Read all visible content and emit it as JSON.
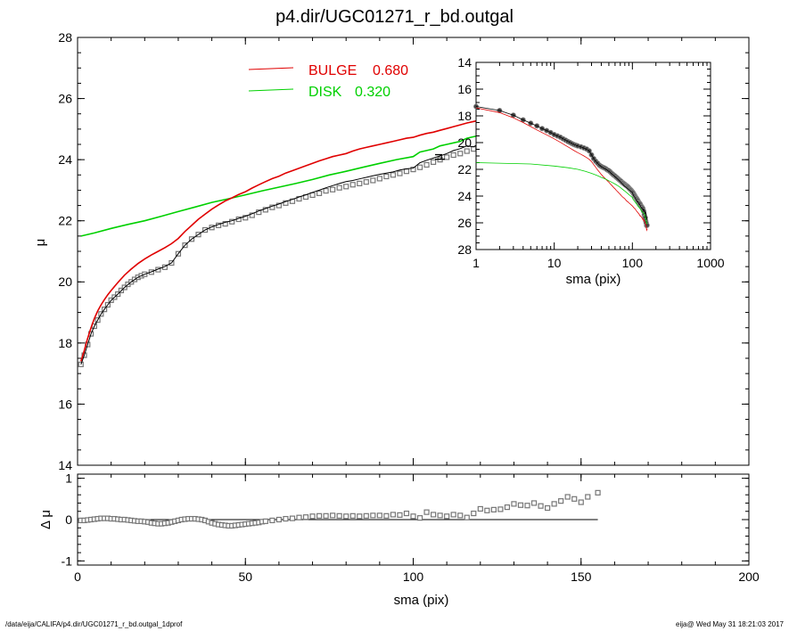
{
  "title": "p4.dir/UGC01271_r_bd.outgal",
  "footer": {
    "left": "/data/eija/CALIFA/p4.dir/UGC01271_r_bd.outgal_1dprof",
    "right": "eija@  Wed May 31 18:21:03 2017"
  },
  "colors": {
    "bulge": "#e00000",
    "disk": "#00d000",
    "total": "#000000",
    "points": "#777777"
  },
  "chart_data": [
    {
      "id": "main",
      "type": "line",
      "xlabel": "sma (pix)",
      "ylabel": "μ",
      "xlim": [
        0,
        200
      ],
      "ylim": [
        28,
        14
      ],
      "xticks": [
        0,
        50,
        100,
        150,
        200
      ],
      "yticks": [
        14,
        16,
        18,
        20,
        22,
        24,
        26,
        28
      ],
      "legend": [
        {
          "label": "BULGE",
          "value": "0.680",
          "color": "#e00000"
        },
        {
          "label": "DISK",
          "value": "0.320",
          "color": "#00d000"
        }
      ],
      "observed": {
        "x": [
          1,
          2,
          3,
          4,
          5,
          6,
          7,
          8,
          9,
          10,
          11,
          12,
          13,
          14,
          15,
          16,
          17,
          18,
          19,
          20,
          22,
          24,
          26,
          28,
          30,
          32,
          34,
          36,
          38,
          40,
          42,
          44,
          46,
          48,
          50,
          52,
          54,
          56,
          58,
          60,
          62,
          64,
          66,
          68,
          70,
          72,
          74,
          76,
          78,
          80,
          82,
          84,
          86,
          88,
          90,
          92,
          94,
          96,
          98,
          100,
          102,
          104,
          106,
          108,
          110,
          112,
          114,
          116,
          118,
          120,
          122,
          124,
          126,
          128,
          130,
          132,
          134,
          136,
          138,
          140,
          142,
          144,
          146,
          148,
          150,
          152,
          154
        ],
        "y": [
          17.3,
          17.6,
          17.95,
          18.3,
          18.55,
          18.75,
          18.95,
          19.1,
          19.25,
          19.4,
          19.5,
          19.6,
          19.72,
          19.82,
          19.92,
          20.0,
          20.08,
          20.15,
          20.2,
          20.25,
          20.32,
          20.4,
          20.48,
          20.62,
          20.92,
          21.2,
          21.4,
          21.55,
          21.7,
          21.78,
          21.85,
          21.9,
          21.97,
          22.05,
          22.1,
          22.18,
          22.28,
          22.36,
          22.44,
          22.5,
          22.58,
          22.64,
          22.72,
          22.78,
          22.84,
          22.9,
          22.98,
          23.02,
          23.08,
          23.12,
          23.18,
          23.22,
          23.27,
          23.32,
          23.38,
          23.45,
          23.5,
          23.55,
          23.62,
          23.68,
          23.75,
          23.83,
          23.92,
          24.0,
          24.08,
          24.15,
          24.2,
          24.28,
          24.35,
          24.45,
          24.5,
          24.55,
          24.6,
          24.7,
          24.78,
          24.8,
          24.9,
          24.92,
          25.05,
          25.15,
          25.4,
          25.55,
          25.6,
          25.85,
          26.0,
          26.2,
          26.18
        ]
      },
      "total_model": {
        "x": [
          1,
          2,
          3,
          4,
          5,
          6,
          7,
          8,
          9,
          10,
          12,
          14,
          16,
          18,
          20,
          22,
          24,
          26,
          28,
          30,
          32,
          34,
          36,
          38,
          40,
          42,
          44,
          46,
          48,
          50,
          52,
          54,
          56,
          58,
          60,
          62,
          64,
          66,
          68,
          70,
          72,
          74,
          76,
          78,
          80,
          82,
          84,
          86,
          88,
          90,
          92,
          94,
          96,
          98,
          100,
          102,
          104,
          106,
          108,
          110,
          112,
          114,
          116,
          118,
          120,
          122,
          124,
          126,
          128,
          130,
          132,
          134,
          136,
          138,
          140,
          142,
          144,
          146,
          148,
          150,
          152,
          155
        ],
        "y": [
          17.3,
          17.6,
          17.95,
          18.3,
          18.55,
          18.75,
          18.95,
          19.1,
          19.25,
          19.4,
          19.6,
          19.82,
          20.0,
          20.15,
          20.25,
          20.33,
          20.42,
          20.5,
          20.62,
          20.92,
          21.2,
          21.4,
          21.55,
          21.7,
          21.8,
          21.88,
          21.95,
          22.0,
          22.08,
          22.15,
          22.23,
          22.32,
          22.4,
          22.48,
          22.55,
          22.63,
          22.7,
          22.78,
          22.85,
          22.93,
          23.0,
          23.08,
          23.15,
          23.22,
          23.28,
          23.32,
          23.37,
          23.42,
          23.47,
          23.52,
          23.56,
          23.6,
          23.66,
          23.7,
          23.72,
          23.9,
          23.98,
          24.05,
          24.12,
          24.2,
          24.3,
          24.36,
          24.45,
          24.42,
          24.55,
          24.63,
          24.6,
          24.72,
          24.8,
          24.88,
          24.9,
          24.98,
          24.95,
          25.05,
          25.0,
          25.1,
          25.2,
          25.3,
          25.2,
          25.55,
          25.72,
          25.62
        ]
      },
      "bulge_model": {
        "x": [
          1,
          2,
          3,
          4,
          5,
          6,
          7,
          8,
          9,
          10,
          12,
          14,
          16,
          18,
          20,
          22,
          24,
          26,
          28,
          30,
          32,
          34,
          36,
          38,
          40,
          42,
          44,
          46,
          48,
          50,
          52,
          54,
          56,
          58,
          60,
          62,
          64,
          66,
          68,
          70,
          72,
          74,
          76,
          78,
          80,
          82,
          84,
          86,
          88,
          90,
          92,
          94,
          96,
          98,
          100,
          102,
          104,
          106,
          108,
          110,
          112,
          114,
          116,
          118,
          120,
          122,
          124,
          126,
          128,
          130,
          132,
          134,
          136,
          138,
          140,
          142,
          144,
          146,
          148,
          150,
          152,
          155
        ],
        "y": [
          17.4,
          17.75,
          18.15,
          18.5,
          18.8,
          19.05,
          19.25,
          19.42,
          19.58,
          19.72,
          19.98,
          20.22,
          20.42,
          20.6,
          20.75,
          20.88,
          21.0,
          21.12,
          21.25,
          21.42,
          21.65,
          21.85,
          22.05,
          22.22,
          22.38,
          22.52,
          22.65,
          22.75,
          22.86,
          22.95,
          23.07,
          23.18,
          23.28,
          23.38,
          23.46,
          23.56,
          23.64,
          23.72,
          23.8,
          23.88,
          23.96,
          24.03,
          24.1,
          24.15,
          24.2,
          24.28,
          24.35,
          24.4,
          24.45,
          24.5,
          24.55,
          24.6,
          24.65,
          24.7,
          24.73,
          24.8,
          24.86,
          24.9,
          24.96,
          25.02,
          25.08,
          25.14,
          25.2,
          25.25,
          25.3,
          25.36,
          25.42,
          25.5,
          25.48,
          25.58,
          25.62,
          25.65,
          25.75,
          25.72,
          25.85,
          25.82,
          25.95,
          26.05,
          26.1,
          26.25,
          26.55,
          26.45
        ]
      },
      "disk_model": {
        "x": [
          1,
          5,
          10,
          15,
          20,
          25,
          30,
          35,
          40,
          45,
          50,
          55,
          60,
          65,
          70,
          75,
          80,
          85,
          90,
          95,
          100,
          102,
          104,
          106,
          108,
          110,
          112,
          114,
          116,
          118,
          120,
          122,
          124,
          126,
          128,
          130,
          132,
          134,
          136,
          138,
          140,
          142,
          144,
          146,
          148,
          150,
          152,
          155
        ],
        "y": [
          21.5,
          21.6,
          21.75,
          21.88,
          22.0,
          22.15,
          22.3,
          22.45,
          22.6,
          22.72,
          22.85,
          22.98,
          23.1,
          23.22,
          23.35,
          23.5,
          23.62,
          23.75,
          23.88,
          24.0,
          24.1,
          24.25,
          24.3,
          24.35,
          24.45,
          24.5,
          24.55,
          24.6,
          24.7,
          24.75,
          24.8,
          24.85,
          24.88,
          24.95,
          25.0,
          25.1,
          25.15,
          25.2,
          25.22,
          25.25,
          25.3,
          25.35,
          25.45,
          25.55,
          25.65,
          25.8,
          26.05,
          26.0
        ]
      }
    },
    {
      "id": "residual",
      "type": "scatter",
      "xlabel": "sma (pix)",
      "ylabel": "Δ μ",
      "xlim": [
        0,
        200
      ],
      "ylim": [
        -1.1,
        1.1
      ],
      "xticks": [
        0,
        50,
        100,
        150,
        200
      ],
      "yticks": [
        -1,
        0,
        1
      ],
      "zero_line": {
        "x": [
          0,
          155
        ],
        "y": 0
      },
      "points": {
        "x": [
          1,
          2,
          3,
          4,
          5,
          6,
          7,
          8,
          9,
          10,
          11,
          12,
          13,
          14,
          15,
          16,
          17,
          18,
          19,
          20,
          21,
          22,
          23,
          24,
          25,
          26,
          27,
          28,
          29,
          30,
          31,
          32,
          33,
          34,
          35,
          36,
          37,
          38,
          39,
          40,
          41,
          42,
          43,
          44,
          45,
          46,
          47,
          48,
          49,
          50,
          51,
          52,
          53,
          54,
          55,
          56,
          58,
          60,
          62,
          64,
          66,
          68,
          70,
          72,
          74,
          76,
          78,
          80,
          82,
          84,
          86,
          88,
          90,
          92,
          94,
          96,
          98,
          100,
          102,
          104,
          106,
          108,
          110,
          112,
          114,
          116,
          118,
          120,
          122,
          124,
          126,
          128,
          130,
          132,
          134,
          136,
          138,
          140,
          142,
          144,
          146,
          148,
          150,
          152,
          155
        ],
        "y": [
          -0.02,
          -0.02,
          -0.01,
          0.0,
          0.01,
          0.02,
          0.03,
          0.03,
          0.03,
          0.02,
          0.02,
          0.01,
          0.0,
          0.0,
          -0.01,
          -0.02,
          -0.03,
          -0.04,
          -0.04,
          -0.05,
          -0.06,
          -0.08,
          -0.09,
          -0.1,
          -0.1,
          -0.09,
          -0.08,
          -0.06,
          -0.04,
          -0.02,
          0.0,
          0.01,
          0.02,
          0.02,
          0.02,
          0.01,
          0.0,
          -0.02,
          -0.05,
          -0.08,
          -0.1,
          -0.12,
          -0.13,
          -0.14,
          -0.15,
          -0.15,
          -0.14,
          -0.13,
          -0.12,
          -0.11,
          -0.1,
          -0.09,
          -0.08,
          -0.07,
          -0.05,
          -0.04,
          -0.02,
          0.0,
          0.02,
          0.03,
          0.05,
          0.06,
          0.08,
          0.09,
          0.09,
          0.1,
          0.09,
          0.08,
          0.09,
          0.08,
          0.09,
          0.1,
          0.1,
          0.09,
          0.12,
          0.11,
          0.15,
          0.08,
          0.04,
          0.18,
          0.12,
          0.1,
          0.08,
          0.12,
          0.1,
          0.05,
          0.15,
          0.26,
          0.22,
          0.24,
          0.25,
          0.3,
          0.38,
          0.35,
          0.34,
          0.4,
          0.33,
          0.28,
          0.38,
          0.45,
          0.55,
          0.5,
          0.42,
          0.55,
          0.65
        ]
      }
    },
    {
      "id": "inset",
      "type": "line",
      "xlabel": "sma (pix)",
      "ylabel": "μ",
      "xscale": "log",
      "xlim": [
        1,
        1000
      ],
      "ylim": [
        28,
        14
      ],
      "xticks": [
        1,
        10,
        100,
        1000
      ],
      "yticks": [
        14,
        16,
        18,
        20,
        22,
        24,
        26,
        28
      ]
    }
  ]
}
